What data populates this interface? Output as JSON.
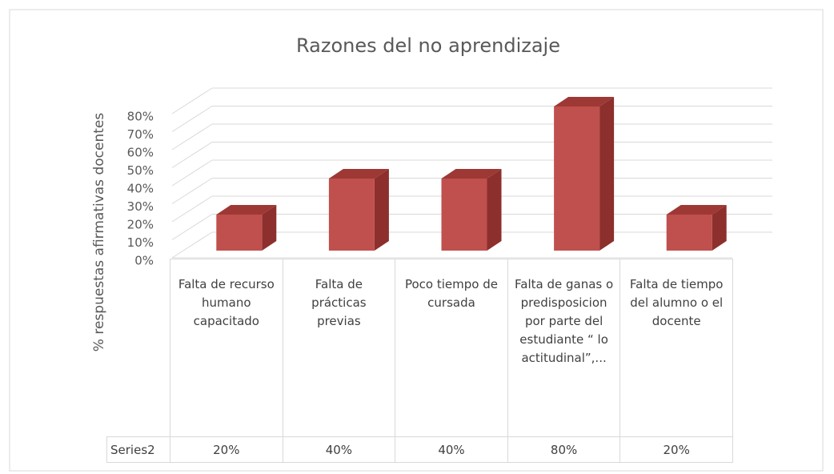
{
  "chart_data": {
    "type": "bar3d",
    "title": "Razones del no aprendizaje",
    "ylabel": "% respuestas afirmativas docentes",
    "categories": [
      "Falta de recurso humano capacitado",
      "Falta de prácticas previas",
      "Poco tiempo de cursada",
      "Falta de ganas o predisposicion por parte del estudiante “ lo actitudinal”,...",
      "Falta de tiempo del alumno o el docente"
    ],
    "series": [
      {
        "name": "Series2",
        "color": "#c0504d",
        "values": [
          20,
          40,
          40,
          80,
          20
        ],
        "value_labels": [
          "20%",
          "40%",
          "40%",
          "80%",
          "20%"
        ]
      }
    ],
    "ylim": [
      0,
      80
    ],
    "yticks": [
      {
        "value": 0,
        "label": "0%"
      },
      {
        "value": 10,
        "label": "10%"
      },
      {
        "value": 20,
        "label": "20%"
      },
      {
        "value": 30,
        "label": "30%"
      },
      {
        "value": 40,
        "label": "40%"
      },
      {
        "value": 50,
        "label": "50%"
      },
      {
        "value": 60,
        "label": "60%"
      },
      {
        "value": 70,
        "label": "70%"
      },
      {
        "value": 80,
        "label": "80%"
      }
    ],
    "grid": true
  }
}
